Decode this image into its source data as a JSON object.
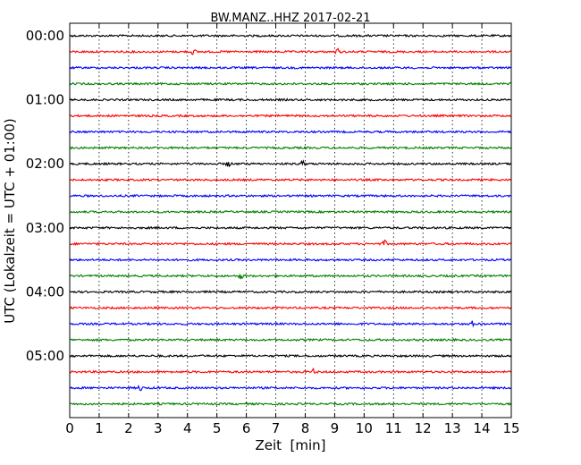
{
  "chart_data": {
    "type": "line",
    "title": "BW.MANZ..HHZ 2017-02-21",
    "xlabel": "Zeit  [min]",
    "ylabel": "UTC (Lokalzeit = UTC + 01:00)",
    "xlim": [
      0,
      15
    ],
    "xticks": [
      "0",
      "1",
      "2",
      "3",
      "4",
      "5",
      "6",
      "7",
      "8",
      "9",
      "10",
      "11",
      "12",
      "13",
      "14",
      "15"
    ],
    "y_hour_labels": [
      "00:00",
      "01:00",
      "02:00",
      "03:00",
      "04:00",
      "05:00"
    ],
    "traces_per_hour": 4,
    "trace_count": 24,
    "trace_colors": [
      "#000000",
      "#ff0000",
      "#0000ff",
      "#008000"
    ],
    "grid": "vertical dotted lines at each minute",
    "annotations": [
      {
        "trace": 1,
        "x": 9.1
      },
      {
        "trace": 1,
        "x": 4.2
      },
      {
        "trace": 8,
        "x": 5.4
      },
      {
        "trace": 8,
        "x": 7.9
      },
      {
        "trace": 13,
        "x": 10.7
      },
      {
        "trace": 18,
        "x": 13.7
      },
      {
        "trace": 21,
        "x": 8.3
      },
      {
        "trace": 22,
        "x": 2.4
      },
      {
        "trace": 15,
        "x": 5.8
      }
    ]
  }
}
